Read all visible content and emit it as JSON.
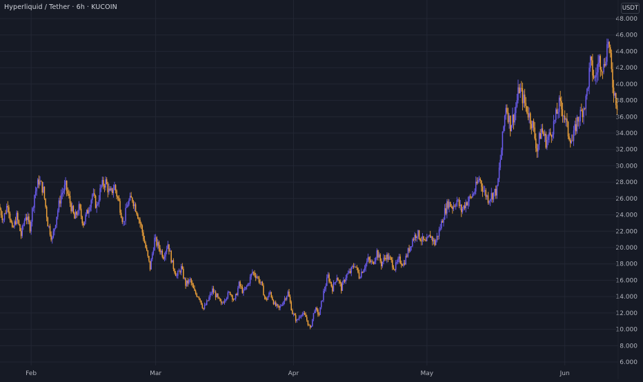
{
  "header": {
    "symbol_title": "Hyperliquid / Tether · 6h · KUCOIN",
    "currency_label": "USDT"
  },
  "colors": {
    "background": "#161a25",
    "grid": "#232734",
    "up_candle": "#6d5df2",
    "down_candle": "#f2a43a",
    "axis_text": "#b2b5be"
  },
  "chart_data": {
    "type": "candlestick",
    "title": "Hyperliquid / Tether · 6h · KUCOIN",
    "quote_currency": "USDT",
    "y_ticks": [
      "6.000",
      "8.000",
      "10.000",
      "12.000",
      "14.000",
      "16.000",
      "18.000",
      "20.000",
      "22.000",
      "24.000",
      "26.000",
      "28.000",
      "30.000",
      "32.000",
      "34.000",
      "36.000",
      "38.000",
      "40.000",
      "42.000",
      "44.000",
      "46.000",
      "48.000"
    ],
    "y_tick_values": [
      6,
      8,
      10,
      12,
      14,
      16,
      18,
      20,
      22,
      24,
      26,
      28,
      30,
      32,
      34,
      36,
      38,
      40,
      42,
      44,
      46,
      48
    ],
    "ylim": [
      5,
      48.5
    ],
    "x_labels": [
      {
        "label": "Feb",
        "day": 31
      },
      {
        "label": "Mar",
        "day": 59
      },
      {
        "label": "Apr",
        "day": 90
      },
      {
        "label": "May",
        "day": 120
      },
      {
        "label": "Jun",
        "day": 151
      }
    ],
    "x_unit": "day of 2025 (Jan 1 = 0)",
    "xlim": [
      24,
      163
    ],
    "grid": true,
    "price_path": [
      [
        24,
        25.0
      ],
      [
        25,
        23.5
      ],
      [
        26,
        25.5
      ],
      [
        27,
        22.0
      ],
      [
        28,
        23.8
      ],
      [
        29,
        21.5
      ],
      [
        30,
        24.0
      ],
      [
        31,
        22.5
      ],
      [
        32,
        26.5
      ],
      [
        33,
        28.2
      ],
      [
        34,
        27.0
      ],
      [
        35,
        23.0
      ],
      [
        36,
        21.0
      ],
      [
        37,
        24.0
      ],
      [
        38,
        26.5
      ],
      [
        39,
        27.5
      ],
      [
        40,
        25.5
      ],
      [
        41,
        23.5
      ],
      [
        42,
        24.8
      ],
      [
        43,
        23.0
      ],
      [
        44,
        24.5
      ],
      [
        45,
        26.5
      ],
      [
        46,
        25.0
      ],
      [
        47,
        27.5
      ],
      [
        48,
        28.0
      ],
      [
        49,
        26.5
      ],
      [
        50,
        27.5
      ],
      [
        51,
        25.5
      ],
      [
        52,
        23.0
      ],
      [
        53,
        25.5
      ],
      [
        54,
        26.0
      ],
      [
        55,
        24.5
      ],
      [
        56,
        22.5
      ],
      [
        57,
        20.0
      ],
      [
        58,
        17.5
      ],
      [
        59,
        21.0
      ],
      [
        60,
        20.0
      ],
      [
        61,
        19.0
      ],
      [
        62,
        20.5
      ],
      [
        63,
        18.0
      ],
      [
        64,
        16.5
      ],
      [
        65,
        17.5
      ],
      [
        66,
        15.5
      ],
      [
        67,
        16.0
      ],
      [
        68,
        14.5
      ],
      [
        69,
        14.0
      ],
      [
        70,
        12.5
      ],
      [
        71,
        13.5
      ],
      [
        72,
        14.8
      ],
      [
        73,
        14.0
      ],
      [
        74,
        13.0
      ],
      [
        75,
        14.0
      ],
      [
        76,
        14.5
      ],
      [
        77,
        13.5
      ],
      [
        78,
        15.5
      ],
      [
        79,
        14.5
      ],
      [
        80,
        15.5
      ],
      [
        81,
        17.0
      ],
      [
        82,
        16.5
      ],
      [
        83,
        15.5
      ],
      [
        84,
        13.5
      ],
      [
        85,
        14.5
      ],
      [
        86,
        13.0
      ],
      [
        87,
        12.5
      ],
      [
        88,
        13.5
      ],
      [
        89,
        14.5
      ],
      [
        90,
        12.0
      ],
      [
        91,
        11.0
      ],
      [
        92,
        12.0
      ],
      [
        93,
        11.5
      ],
      [
        94,
        10.0
      ],
      [
        95,
        12.5
      ],
      [
        96,
        11.8
      ],
      [
        97,
        14.5
      ],
      [
        98,
        16.5
      ],
      [
        99,
        15.0
      ],
      [
        100,
        16.5
      ],
      [
        101,
        15.0
      ],
      [
        102,
        16.5
      ],
      [
        103,
        17.0
      ],
      [
        104,
        18.0
      ],
      [
        105,
        16.5
      ],
      [
        106,
        17.5
      ],
      [
        107,
        18.5
      ],
      [
        108,
        18.0
      ],
      [
        109,
        19.5
      ],
      [
        110,
        18.0
      ],
      [
        111,
        19.0
      ],
      [
        112,
        18.5
      ],
      [
        113,
        17.5
      ],
      [
        114,
        18.5
      ],
      [
        115,
        18.0
      ],
      [
        116,
        19.5
      ],
      [
        117,
        21.0
      ],
      [
        118,
        21.8
      ],
      [
        119,
        21.0
      ],
      [
        120,
        20.5
      ],
      [
        121,
        21.5
      ],
      [
        122,
        20.5
      ],
      [
        123,
        22.0
      ],
      [
        124,
        24.0
      ],
      [
        125,
        25.5
      ],
      [
        126,
        25.0
      ],
      [
        127,
        25.8
      ],
      [
        128,
        24.5
      ],
      [
        129,
        25.5
      ],
      [
        130,
        26.0
      ],
      [
        131,
        27.0
      ],
      [
        132,
        28.5
      ],
      [
        133,
        27.0
      ],
      [
        134,
        26.0
      ],
      [
        135,
        26.5
      ],
      [
        136,
        27.0
      ],
      [
        137,
        32.0
      ],
      [
        138,
        37.5
      ],
      [
        139,
        35.0
      ],
      [
        140,
        36.5
      ],
      [
        141,
        39.5
      ],
      [
        142,
        38.0
      ],
      [
        143,
        36.5
      ],
      [
        144,
        35.0
      ],
      [
        145,
        32.0
      ],
      [
        146,
        34.5
      ],
      [
        147,
        33.0
      ],
      [
        148,
        33.8
      ],
      [
        149,
        35.5
      ],
      [
        150,
        37.5
      ],
      [
        151,
        36.5
      ],
      [
        152,
        34.0
      ],
      [
        153,
        33.0
      ],
      [
        154,
        35.5
      ],
      [
        155,
        36.5
      ],
      [
        156,
        38.0
      ],
      [
        157,
        42.5
      ],
      [
        158,
        40.5
      ],
      [
        159,
        43.0
      ],
      [
        160,
        42.0
      ],
      [
        161,
        45.5
      ],
      [
        162,
        40.0
      ],
      [
        163,
        37.5
      ]
    ]
  }
}
